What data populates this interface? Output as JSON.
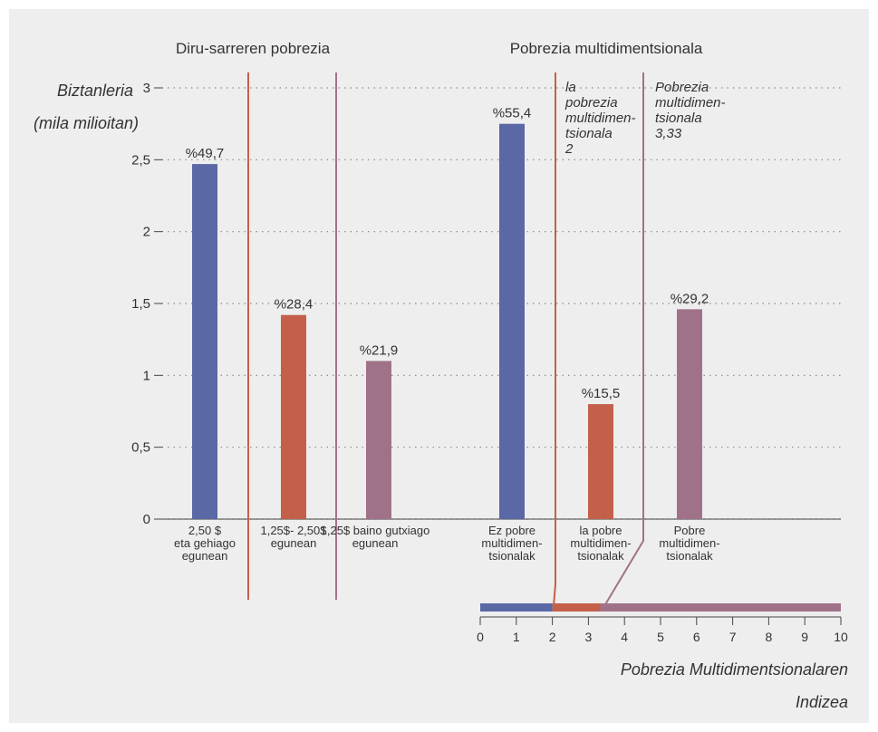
{
  "chart_data": {
    "type": "bar",
    "group_titles": [
      "Diru-sarreren pobrezia",
      "Pobrezia multidimentsionala"
    ],
    "ylabel": [
      "Biztanleria",
      "(mila milioitan)"
    ],
    "yticks": [
      "0",
      "0,5",
      "1",
      "1,5",
      "2",
      "2,5",
      "3"
    ],
    "ylim": [
      0,
      3
    ],
    "grid": true,
    "bars": [
      {
        "value": 2.47,
        "label": "%49,7",
        "category": [
          "2,50 $",
          "eta gehiago",
          "egunean"
        ],
        "color": "#5b68a6"
      },
      {
        "value": 1.42,
        "label": "%28,4",
        "category": [
          "1,25$- 2,50$",
          "egunean"
        ],
        "color": "#c4604a"
      },
      {
        "value": 1.1,
        "label": "%21,9",
        "category": [
          "1,25$ baino gutxiago",
          "egunean"
        ],
        "color": "#a0728a"
      },
      {
        "value": 2.75,
        "label": "%55,4",
        "category": [
          "Ez pobre",
          "multidimen-",
          "tsionalak"
        ],
        "color": "#5b68a6"
      },
      {
        "value": 0.8,
        "label": "%15,5",
        "category": [
          "la pobre",
          "multidimen-",
          "tsionalak"
        ],
        "color": "#c4604a"
      },
      {
        "value": 1.46,
        "label": "%29,2",
        "category": [
          "Pobre",
          "multidimen-",
          "tsionalak"
        ],
        "color": "#a0728a"
      }
    ],
    "annotations": [
      [
        "la",
        "pobrezia",
        "multidimen-",
        "tsionala",
        "2"
      ],
      [
        "Pobrezia",
        "multidimen-",
        "tsionala",
        "3,33"
      ]
    ],
    "index_scale": {
      "title": [
        "Pobrezia Multidimentsionalaren",
        "Indizea"
      ],
      "ticks": [
        "0",
        "1",
        "2",
        "3",
        "4",
        "5",
        "6",
        "7",
        "8",
        "9",
        "10"
      ],
      "range": [
        0,
        10
      ],
      "segments": [
        {
          "from": 0,
          "to": 2,
          "color": "#5b68a6"
        },
        {
          "from": 2,
          "to": 3.33,
          "color": "#c4604a"
        },
        {
          "from": 3.33,
          "to": 10,
          "color": "#a0728a"
        }
      ]
    },
    "divider_colors": [
      "#c4604a",
      "#a0728a"
    ]
  }
}
